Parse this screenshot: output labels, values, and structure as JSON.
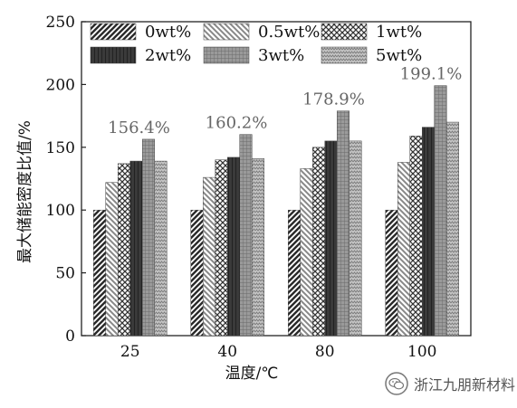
{
  "chart_data": {
    "type": "bar",
    "categories": [
      "25",
      "40",
      "80",
      "100"
    ],
    "series": [
      {
        "name": "0wt%",
        "values": [
          100,
          100,
          100,
          100
        ],
        "pattern": "diag-back"
      },
      {
        "name": "0.5wt%",
        "values": [
          122,
          126,
          133,
          138
        ],
        "pattern": "diag-fwd"
      },
      {
        "name": "1wt%",
        "values": [
          137,
          140,
          150,
          159
        ],
        "pattern": "crosshatch"
      },
      {
        "name": "2wt%",
        "values": [
          139,
          142,
          155,
          166
        ],
        "pattern": "dark-vert"
      },
      {
        "name": "3wt%",
        "values": [
          156.4,
          160.2,
          178.9,
          199.1
        ],
        "pattern": "grid"
      },
      {
        "name": "5wt%",
        "values": [
          139,
          141,
          155,
          170
        ],
        "pattern": "herringbone"
      }
    ],
    "annotations": [
      {
        "text": "156.4%",
        "category_index": 0
      },
      {
        "text": "160.2%",
        "category_index": 1
      },
      {
        "text": "178.9%",
        "category_index": 2
      },
      {
        "text": "199.1%",
        "category_index": 3
      }
    ],
    "title": "",
    "xlabel": "温度/℃",
    "ylabel": "最大储能密度比值/%",
    "ylim": [
      0,
      250
    ],
    "yticks": [
      0,
      50,
      100,
      150,
      200,
      250
    ],
    "grid": false,
    "legend_position": "top-left",
    "legend_columns": 3
  },
  "watermark": {
    "text": "浙江九朋新材料",
    "icon": "wechat-icon"
  },
  "colors": {
    "axis": "#222222",
    "bar_dark": "#333333",
    "bar_mid": "#7a7a7a",
    "annotation": "#666666"
  }
}
